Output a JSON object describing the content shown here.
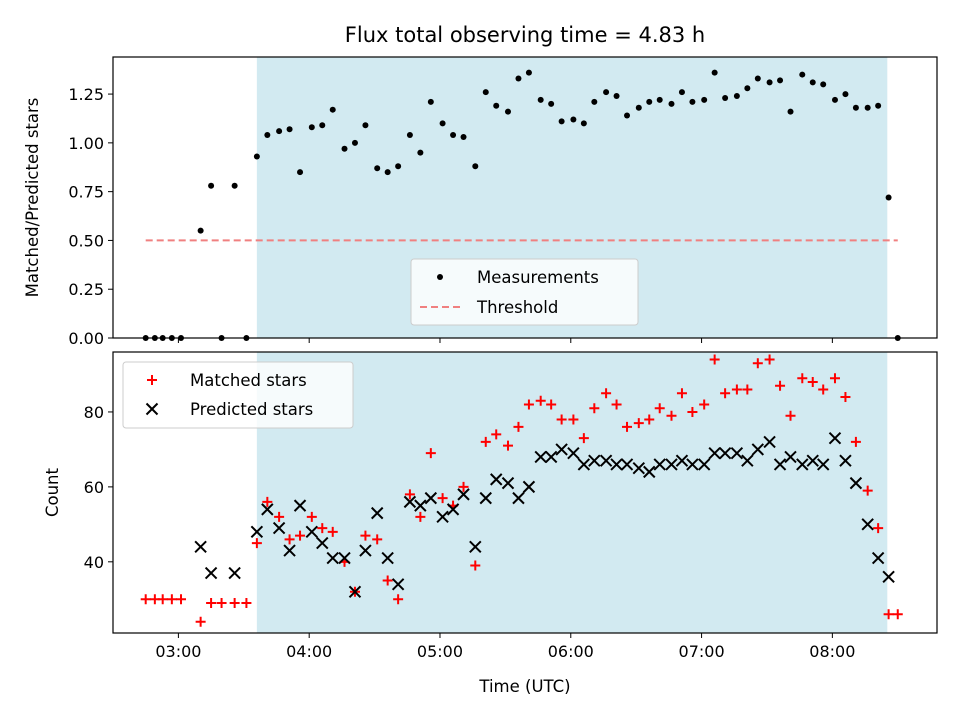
{
  "figure": {
    "title": "Flux total observing time = 4.83 h",
    "xlabel": "Time (UTC)",
    "x_ticks": [
      "03:00",
      "04:00",
      "05:00",
      "06:00",
      "07:00",
      "08:00"
    ],
    "x_tick_values": [
      3.0,
      4.0,
      5.0,
      6.0,
      7.0,
      8.0
    ],
    "xlim": [
      2.5,
      8.8
    ],
    "shaded_interval": [
      3.6,
      8.42
    ],
    "colors": {
      "shade": "#add8e6",
      "measurements": "#000000",
      "threshold": "#f08080",
      "matched": "#ff0000",
      "predicted": "#000000"
    }
  },
  "chart_data": [
    {
      "type": "scatter",
      "ylabel": "Matched/Predicted stars",
      "ylim": [
        0,
        1.44
      ],
      "y_ticks": [
        "0.00",
        "0.25",
        "0.50",
        "0.75",
        "1.00",
        "1.25"
      ],
      "y_tick_values": [
        0,
        0.25,
        0.5,
        0.75,
        1.0,
        1.25
      ],
      "legend_position": "lower-center",
      "threshold": {
        "name": "Threshold",
        "y": 0.5,
        "x_range": [
          2.75,
          8.5
        ]
      },
      "series": [
        {
          "name": "Measurements",
          "x": [
            2.75,
            2.82,
            2.88,
            2.95,
            3.02,
            3.17,
            3.25,
            3.33,
            3.43,
            3.52,
            3.6,
            3.68,
            3.77,
            3.85,
            3.93,
            4.02,
            4.1,
            4.18,
            4.27,
            4.35,
            4.43,
            4.52,
            4.6,
            4.68,
            4.77,
            4.85,
            4.93,
            5.02,
            5.1,
            5.18,
            5.27,
            5.35,
            5.43,
            5.52,
            5.6,
            5.68,
            5.77,
            5.85,
            5.93,
            6.02,
            6.1,
            6.18,
            6.27,
            6.35,
            6.43,
            6.52,
            6.6,
            6.68,
            6.77,
            6.85,
            6.93,
            7.02,
            7.1,
            7.18,
            7.27,
            7.35,
            7.43,
            7.52,
            7.6,
            7.68,
            7.77,
            7.85,
            7.93,
            8.02,
            8.1,
            8.18,
            8.27,
            8.35,
            8.43,
            8.5
          ],
          "y": [
            0,
            0,
            0,
            0,
            0,
            0.55,
            0.78,
            0,
            0.78,
            0,
            0.93,
            1.04,
            1.06,
            1.07,
            0.85,
            1.08,
            1.09,
            1.17,
            0.97,
            1.0,
            1.09,
            0.87,
            0.85,
            0.88,
            1.04,
            0.95,
            1.21,
            1.1,
            1.04,
            1.03,
            0.88,
            1.26,
            1.19,
            1.16,
            1.33,
            1.36,
            1.22,
            1.2,
            1.11,
            1.12,
            1.1,
            1.21,
            1.26,
            1.24,
            1.14,
            1.18,
            1.21,
            1.22,
            1.2,
            1.26,
            1.21,
            1.22,
            1.36,
            1.23,
            1.24,
            1.28,
            1.33,
            1.31,
            1.32,
            1.16,
            1.35,
            1.31,
            1.3,
            1.22,
            1.25,
            1.18,
            1.18,
            1.19,
            0.72,
            0
          ]
        }
      ]
    },
    {
      "type": "scatter",
      "ylabel": "Count",
      "ylim": [
        21,
        96
      ],
      "y_ticks": [
        "40",
        "60",
        "80"
      ],
      "y_tick_values": [
        40,
        60,
        80
      ],
      "legend_position": "upper-left",
      "series": [
        {
          "name": "Matched stars",
          "x": [
            2.75,
            2.82,
            2.88,
            2.95,
            3.02,
            3.17,
            3.25,
            3.33,
            3.43,
            3.52,
            3.6,
            3.68,
            3.77,
            3.85,
            3.93,
            4.02,
            4.1,
            4.18,
            4.27,
            4.35,
            4.43,
            4.52,
            4.6,
            4.68,
            4.77,
            4.85,
            4.93,
            5.02,
            5.1,
            5.18,
            5.27,
            5.35,
            5.43,
            5.52,
            5.6,
            5.68,
            5.77,
            5.85,
            5.93,
            6.02,
            6.1,
            6.18,
            6.27,
            6.35,
            6.43,
            6.52,
            6.6,
            6.68,
            6.77,
            6.85,
            6.93,
            7.02,
            7.1,
            7.18,
            7.27,
            7.35,
            7.43,
            7.52,
            7.6,
            7.68,
            7.77,
            7.85,
            7.93,
            8.02,
            8.1,
            8.18,
            8.27,
            8.35,
            8.43,
            8.5
          ],
          "y": [
            30,
            30,
            30,
            30,
            30,
            24,
            29,
            29,
            29,
            29,
            45,
            56,
            52,
            46,
            47,
            52,
            49,
            48,
            40,
            32,
            47,
            46,
            35,
            30,
            58,
            52,
            69,
            57,
            55,
            60,
            39,
            72,
            74,
            71,
            76,
            82,
            83,
            82,
            78,
            78,
            73,
            81,
            85,
            82,
            76,
            77,
            78,
            81,
            79,
            85,
            80,
            82,
            94,
            85,
            86,
            86,
            93,
            94,
            87,
            79,
            89,
            88,
            86,
            89,
            84,
            72,
            59,
            49,
            26,
            26
          ]
        },
        {
          "name": "Predicted stars",
          "x": [
            3.17,
            3.25,
            3.43,
            3.6,
            3.68,
            3.77,
            3.85,
            3.93,
            4.02,
            4.1,
            4.18,
            4.27,
            4.35,
            4.43,
            4.52,
            4.6,
            4.68,
            4.77,
            4.85,
            4.93,
            5.02,
            5.1,
            5.18,
            5.27,
            5.35,
            5.43,
            5.52,
            5.6,
            5.68,
            5.77,
            5.85,
            5.93,
            6.02,
            6.1,
            6.18,
            6.27,
            6.35,
            6.43,
            6.52,
            6.6,
            6.68,
            6.77,
            6.85,
            6.93,
            7.02,
            7.1,
            7.18,
            7.27,
            7.35,
            7.43,
            7.52,
            7.6,
            7.68,
            7.77,
            7.85,
            7.93,
            8.02,
            8.1,
            8.18,
            8.27,
            8.35,
            8.43
          ],
          "y": [
            44,
            37,
            37,
            48,
            54,
            49,
            43,
            55,
            48,
            45,
            41,
            41,
            32,
            43,
            53,
            41,
            34,
            56,
            55,
            57,
            52,
            54,
            58,
            44,
            57,
            62,
            61,
            57,
            60,
            68,
            68,
            70,
            69,
            66,
            67,
            67,
            66,
            66,
            65,
            64,
            66,
            66,
            67,
            66,
            66,
            69,
            69,
            69,
            67,
            70,
            72,
            66,
            68,
            66,
            67,
            66,
            73,
            67,
            61,
            50,
            41,
            36
          ]
        }
      ]
    }
  ]
}
